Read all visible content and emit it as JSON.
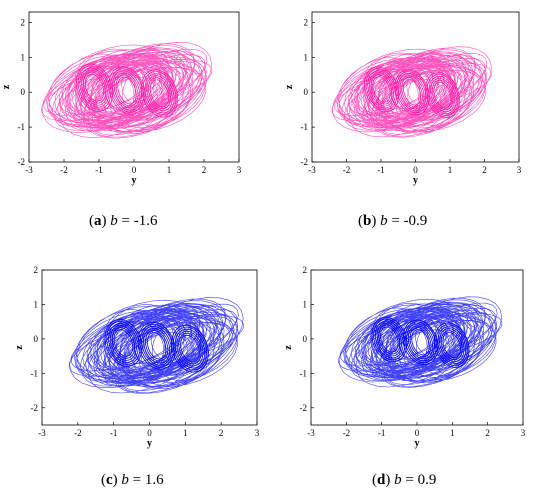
{
  "chart_data": [
    {
      "type": "scatter",
      "panel": "a",
      "caption": {
        "letter": "a",
        "text": "b = -1.6",
        "var": "b",
        "value": "-1.6"
      },
      "xlabel": "y",
      "ylabel": "z",
      "xlim": [
        -3,
        3
      ],
      "ylim": [
        -2,
        2.3
      ],
      "xticks": [
        -3,
        -2,
        -1,
        0,
        1,
        2,
        3
      ],
      "yticks": [
        -2,
        -1,
        0,
        1,
        2
      ],
      "color": "#ff1aa8",
      "attractor": {
        "cx": -0.2,
        "cy": 0.05,
        "rx": 2.0,
        "ry": 1.0,
        "tilt": -0.35
      }
    },
    {
      "type": "scatter",
      "panel": "b",
      "caption": {
        "letter": "b",
        "text": "b = -0.9",
        "var": "b",
        "value": "-0.9"
      },
      "xlabel": "y",
      "ylabel": "z",
      "xlim": [
        -3,
        3
      ],
      "ylim": [
        -2,
        2.3
      ],
      "xticks": [
        -3,
        -2,
        -1,
        0,
        1,
        2,
        3
      ],
      "yticks": [
        -2,
        -1,
        0,
        1,
        2
      ],
      "color": "#ff1aa8",
      "attractor": {
        "cx": -0.1,
        "cy": 0.0,
        "rx": 1.9,
        "ry": 0.95,
        "tilt": -0.35
      }
    },
    {
      "type": "scatter",
      "panel": "c",
      "caption": {
        "letter": "c",
        "text": "b = 1.6",
        "var": "b",
        "value": "1.6"
      },
      "xlabel": "y",
      "ylabel": "z",
      "xlim": [
        -3,
        3
      ],
      "ylim": [
        -2.5,
        2
      ],
      "xticks": [
        -3,
        -2,
        -1,
        0,
        1,
        2,
        3
      ],
      "yticks": [
        -2,
        -1,
        0,
        1,
        2
      ],
      "color": "#0000ff",
      "attractor": {
        "cx": 0.2,
        "cy": -0.2,
        "rx": 2.0,
        "ry": 1.0,
        "tilt": -0.35
      }
    },
    {
      "type": "scatter",
      "panel": "d",
      "caption": {
        "letter": "d",
        "text": "b = 0.9",
        "var": "b",
        "value": "0.9"
      },
      "xlabel": "y",
      "ylabel": "z",
      "xlim": [
        -3,
        3
      ],
      "ylim": [
        -2.5,
        2
      ],
      "xticks": [
        -3,
        -2,
        -1,
        0,
        1,
        2,
        3
      ],
      "yticks": [
        -2,
        -1,
        0,
        1,
        2
      ],
      "color": "#0000ff",
      "attractor": {
        "cx": 0.1,
        "cy": -0.1,
        "rx": 1.9,
        "ry": 0.95,
        "tilt": -0.35
      }
    }
  ]
}
